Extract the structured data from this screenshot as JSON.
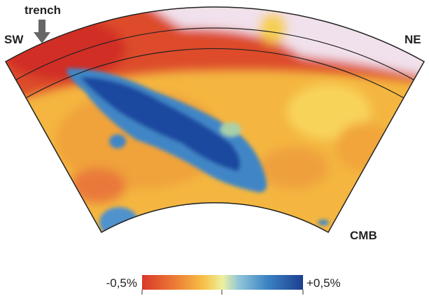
{
  "labels": {
    "trench": "trench",
    "left": "SW",
    "right": "NE",
    "bottom": "CMB"
  },
  "colorbar": {
    "min_label": "-0,5%",
    "max_label": "+0,5%"
  }
}
